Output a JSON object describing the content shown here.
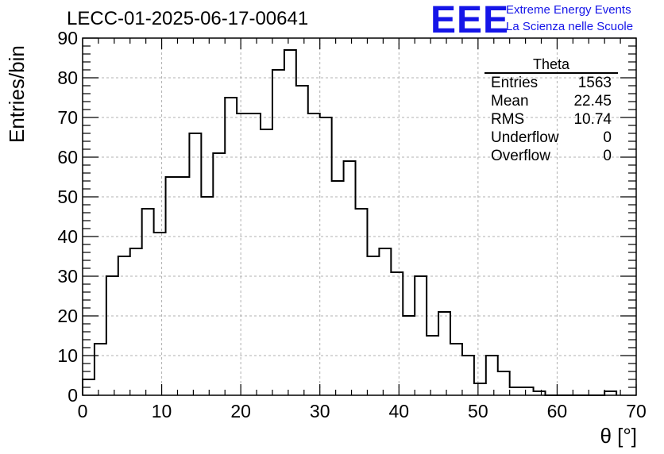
{
  "header": {
    "title": "LECC-01-2025-06-17-00641",
    "logo_text": "EEE",
    "logo_line1": "Extreme Energy Events",
    "logo_line2": "La Scienza nelle Scuole",
    "logo_color": "#1515e8"
  },
  "stats_box": {
    "title": "Theta",
    "rows": [
      {
        "label": "Entries",
        "value": "1563"
      },
      {
        "label": "Mean",
        "value": "22.45"
      },
      {
        "label": "RMS",
        "value": "10.74"
      },
      {
        "label": "Underflow",
        "value": "0"
      },
      {
        "label": "Overflow",
        "value": "0"
      }
    ]
  },
  "chart_data": {
    "type": "histogram",
    "title": "LECC-01-2025-06-17-00641",
    "xlabel": "θ [°]",
    "ylabel": "Entries/bin",
    "xlim": [
      0,
      70
    ],
    "ylim": [
      0,
      90
    ],
    "bin_width": 1.5,
    "bin_start": 0,
    "x_ticks": [
      0,
      10,
      20,
      30,
      40,
      50,
      60,
      70
    ],
    "y_ticks": [
      0,
      10,
      20,
      30,
      40,
      50,
      60,
      70,
      80,
      90
    ],
    "grid": true,
    "line_color": "#000000",
    "values": [
      4,
      13,
      30,
      35,
      37,
      47,
      41,
      55,
      55,
      66,
      50,
      61,
      75,
      71,
      71,
      67,
      82,
      87,
      78,
      71,
      70,
      54,
      59,
      47,
      35,
      37,
      31,
      20,
      30,
      15,
      21,
      13,
      10,
      3,
      10,
      6,
      2,
      2,
      1,
      0,
      0,
      0,
      0,
      0,
      1
    ]
  }
}
